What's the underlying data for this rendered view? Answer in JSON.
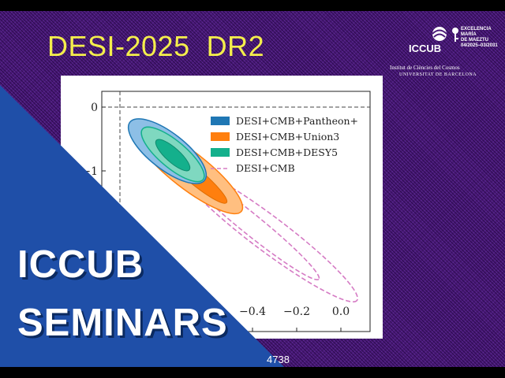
{
  "slide": {
    "title": "DESI-2025  DR2",
    "colors": {
      "background": "#4a1a78",
      "title": "#f4ee4c",
      "panel": "#1f4fa8"
    }
  },
  "logo": {
    "icon": "iccub-logo-icon",
    "name": "ICCUB",
    "excellence": [
      "EXCELENCIA",
      "MARÍA",
      "DE MAEZTU",
      "04/2025–03/2031"
    ],
    "institute": "Institut de Ciències del Cosmos",
    "university": "UNIVERSITAT DE BARCELONA"
  },
  "plot": {
    "tick_labels_y": [
      "0",
      "−1"
    ],
    "tick_labels_x": [
      "−0.4",
      "−0.2",
      "0.0"
    ],
    "legend": [
      {
        "label": "DESI+CMB+Pantheon+",
        "color": "#1f77b4",
        "style": "filled"
      },
      {
        "label": "DESI+CMB+Union3",
        "color": "#ff7f0e",
        "style": "filled"
      },
      {
        "label": "DESI+CMB+DESY5",
        "color": "#14b08c",
        "style": "filled"
      },
      {
        "label": "DESI+CMB",
        "color": "#d57bc4",
        "style": "dashed"
      }
    ]
  },
  "banner": {
    "line1": "ICCUB",
    "line2": "SEMINARS"
  },
  "footer": {
    "arxiv": "4738"
  }
}
